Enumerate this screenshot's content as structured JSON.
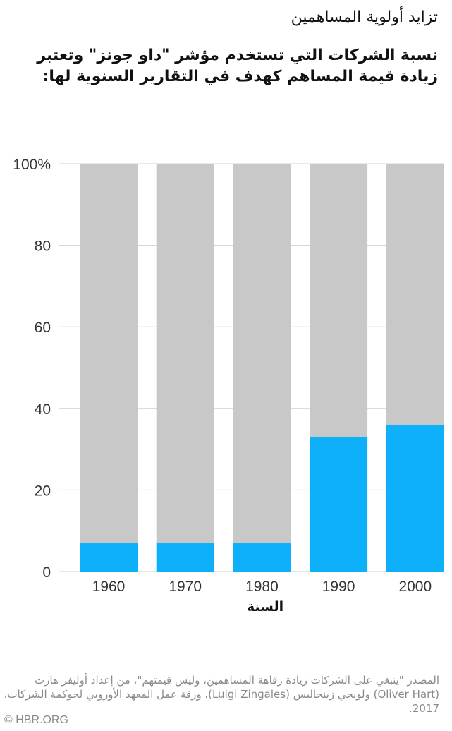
{
  "header": {
    "title": "تزايد أولوية المساهمين",
    "subtitle": "نسبة الشركات التي تستخدم مؤشر \"داو جونز\" وتعتبر زيادة قيمة المساهم كهدف في التقارير السنوية لها:"
  },
  "chart_data": {
    "type": "bar",
    "stacked_to_100": true,
    "categories": [
      "1960",
      "1970",
      "1980",
      "1990",
      "2000"
    ],
    "values": [
      7,
      7,
      7,
      33,
      36
    ],
    "remainder_values": [
      93,
      93,
      93,
      67,
      64
    ],
    "ylim": [
      0,
      100
    ],
    "y_ticks": [
      0,
      20,
      40,
      60,
      80,
      100
    ],
    "y_tick_labels": [
      "0",
      "20",
      "40",
      "60",
      "80",
      "100%"
    ],
    "xlabel": "السنة",
    "ylabel": "",
    "grid": true,
    "colors": {
      "value": "#0fb0fa",
      "remainder": "#c8c8c8",
      "grid": "#d0d0d0"
    }
  },
  "footer": {
    "source": "المصدر \"ينبغي على الشركات زيادة رفاهة المساهمين، وليس قيمتهم\"، من إعداد أوليفر هارت (Oliver Hart) ولويجي زينجاليس (Luigi Zingales). ورقة عمل المعهد الأوروبي لحوكمة الشركات، 2017.",
    "credit": "© HBR.ORG"
  }
}
